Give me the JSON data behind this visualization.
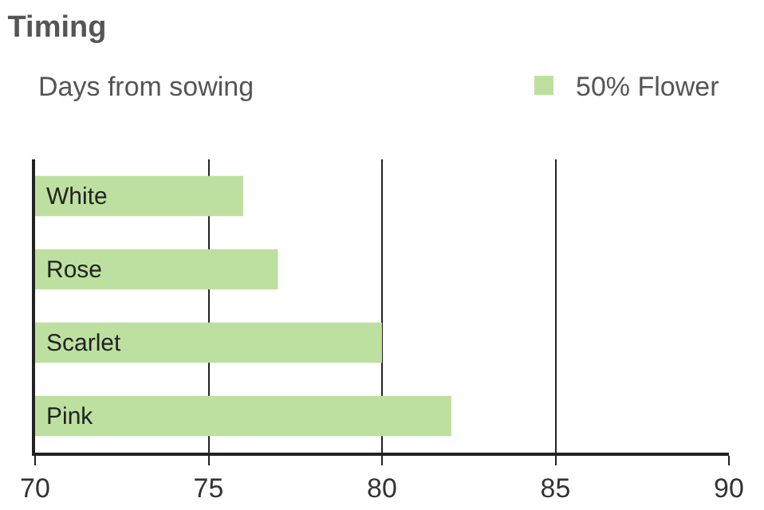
{
  "chart_data": {
    "type": "bar",
    "orientation": "horizontal",
    "title": "Timing",
    "subtitle": "Days from sowing",
    "categories": [
      "White",
      "Rose",
      "Scarlet",
      "Pink"
    ],
    "series": [
      {
        "name": "50% Flower",
        "color": "#bde0a0",
        "values": [
          76,
          77,
          80,
          82
        ]
      }
    ],
    "xlim": [
      70,
      90
    ],
    "xticks": [
      70,
      75,
      80,
      85,
      90
    ],
    "grid": "x",
    "legend": "top right"
  }
}
